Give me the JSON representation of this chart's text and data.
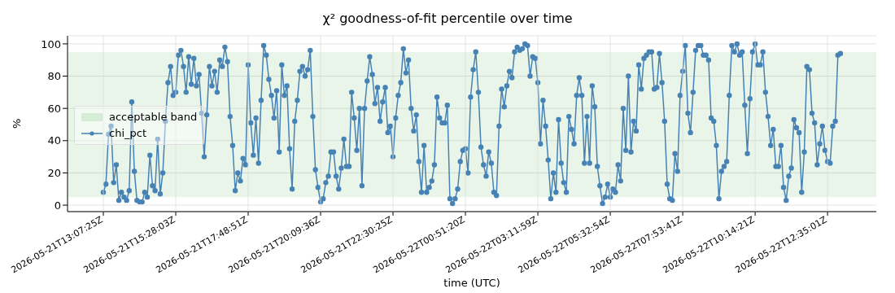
{
  "chart_data": {
    "type": "line",
    "title": "χ² goodness-of-fit percentile over time",
    "xlabel": "time (UTC)",
    "ylabel": "%",
    "categories": [
      "2026-05-21T13:07:25Z",
      null,
      null,
      null,
      null,
      null,
      null,
      null,
      null,
      null,
      null,
      null,
      null,
      null,
      null,
      null,
      null,
      null,
      null,
      null,
      null,
      null,
      null,
      null,
      null,
      null,
      null,
      null,
      "2026-05-21T15:28:03Z",
      null,
      null,
      null,
      null,
      null,
      null,
      null,
      null,
      null,
      null,
      null,
      null,
      null,
      null,
      null,
      null,
      null,
      null,
      null,
      null,
      null,
      null,
      null,
      null,
      null,
      null,
      null,
      "2026-05-21T17:48:51Z",
      null,
      null,
      null,
      null,
      null,
      null,
      null,
      null,
      null,
      null,
      null,
      null,
      null,
      null,
      null,
      null,
      null,
      null,
      null,
      null,
      null,
      null,
      null,
      null,
      null,
      null,
      null,
      "2026-05-21T20:09:36Z",
      null,
      null,
      null,
      null,
      null,
      null,
      null,
      null,
      null,
      null,
      null,
      null,
      null,
      null,
      null,
      null,
      null,
      null,
      null,
      null,
      null,
      null,
      null,
      null,
      null,
      null,
      null,
      "2026-05-21T22:30:25Z",
      null,
      null,
      null,
      null,
      null,
      null,
      null,
      null,
      null,
      null,
      null,
      null,
      null,
      null,
      null,
      null,
      null,
      null,
      null,
      null,
      null,
      null,
      null,
      null,
      null,
      null,
      null,
      "2026-05-22T00:51:20Z",
      null,
      null,
      null,
      null,
      null,
      null,
      null,
      null,
      null,
      null,
      null,
      null,
      null,
      null,
      null,
      null,
      null,
      null,
      null,
      null,
      null,
      null,
      null,
      null,
      null,
      null,
      null,
      "2026-05-22T03:11:59Z",
      null,
      null,
      null,
      null,
      null,
      null,
      null,
      null,
      null,
      null,
      null,
      null,
      null,
      null,
      null,
      null,
      null,
      null,
      null,
      null,
      null,
      null,
      null,
      null,
      null,
      null,
      null,
      "2026-05-22T05:32:54Z",
      null,
      null,
      null,
      null,
      null,
      null,
      null,
      null,
      null,
      null,
      null,
      null,
      null,
      null,
      null,
      null,
      null,
      null,
      null,
      null,
      null,
      null,
      null,
      null,
      null,
      null,
      null,
      "2026-05-22T07:53:41Z",
      null,
      null,
      null,
      null,
      null,
      null,
      null,
      null,
      null,
      null,
      null,
      null,
      null,
      null,
      null,
      null,
      null,
      null,
      null,
      null,
      null,
      null,
      null,
      null,
      null,
      null,
      null,
      "2026-05-22T10:14:21Z",
      null,
      null,
      null,
      null,
      null,
      null,
      null,
      null,
      null,
      null,
      null,
      null,
      null,
      null,
      null,
      null,
      null,
      null,
      null,
      null,
      null,
      null,
      null,
      null,
      null,
      null,
      null,
      "2026-05-22T12:35:01Z",
      null,
      null,
      null,
      null,
      null
    ],
    "series": [
      {
        "name": "chi_pct",
        "color": "#4682b4",
        "values": [
          8,
          13,
          44,
          49,
          14,
          25,
          3,
          8,
          5,
          3,
          9,
          64,
          21,
          3,
          2,
          2,
          8,
          5,
          31,
          12,
          9,
          41,
          7,
          20,
          52,
          76,
          86,
          68,
          70,
          93,
          96,
          86,
          70,
          92,
          75,
          91,
          74,
          81,
          57,
          30,
          56,
          86,
          74,
          83,
          70,
          90,
          86,
          98,
          89,
          55,
          37,
          9,
          20,
          15,
          29,
          25,
          87,
          51,
          31,
          54,
          26,
          65,
          99,
          93,
          78,
          68,
          54,
          71,
          33,
          87,
          68,
          74,
          35,
          10,
          52,
          65,
          83,
          86,
          80,
          84,
          96,
          55,
          22,
          11,
          2,
          4,
          14,
          18,
          33,
          33,
          18,
          10,
          23,
          41,
          24,
          24,
          70,
          54,
          34,
          60,
          12,
          60,
          77,
          92,
          81,
          63,
          73,
          52,
          64,
          73,
          45,
          49,
          30,
          54,
          68,
          76,
          97,
          82,
          90,
          60,
          46,
          56,
          27,
          8,
          37,
          8,
          11,
          15,
          25,
          67,
          54,
          51,
          51,
          62,
          4,
          1,
          4,
          10,
          27,
          34,
          35,
          20,
          67,
          84,
          95,
          70,
          36,
          25,
          18,
          33,
          26,
          8,
          6,
          49,
          72,
          61,
          74,
          83,
          79,
          95,
          98,
          96,
          97,
          100,
          99,
          80,
          92,
          91,
          76,
          38,
          65,
          49,
          28,
          4,
          20,
          8,
          53,
          26,
          14,
          8,
          55,
          47,
          38,
          68,
          79,
          68,
          26,
          55,
          26,
          74,
          61,
          24,
          12,
          1,
          5,
          13,
          5,
          10,
          8,
          25,
          15,
          60,
          34,
          80,
          33,
          52,
          46,
          87,
          72,
          91,
          93,
          95,
          95,
          72,
          73,
          94,
          76,
          52,
          13,
          4,
          3,
          32,
          21,
          68,
          83,
          99,
          57,
          45,
          70,
          96,
          99,
          99,
          93,
          93,
          90,
          54,
          52,
          37,
          4,
          21,
          24,
          27,
          68,
          99,
          95,
          100,
          93,
          95,
          62,
          32,
          66,
          95,
          100,
          87,
          87,
          95,
          70,
          55,
          37,
          47,
          24,
          24,
          37,
          11,
          3,
          18,
          23,
          53,
          48,
          45,
          8,
          33,
          86,
          84,
          57,
          51,
          25,
          38,
          49,
          34,
          27,
          26,
          49,
          52,
          93,
          94
        ]
      }
    ],
    "bands": [
      {
        "axis": "y",
        "from": 5,
        "to": 95,
        "label": "acceptable band",
        "color": "#2ca02c"
      }
    ],
    "ylim": [
      -4,
      105
    ],
    "yticks": [
      0,
      20,
      40,
      60,
      80,
      100
    ],
    "grid": true,
    "legend": "left",
    "marker": "circle",
    "line_style": "solid"
  }
}
